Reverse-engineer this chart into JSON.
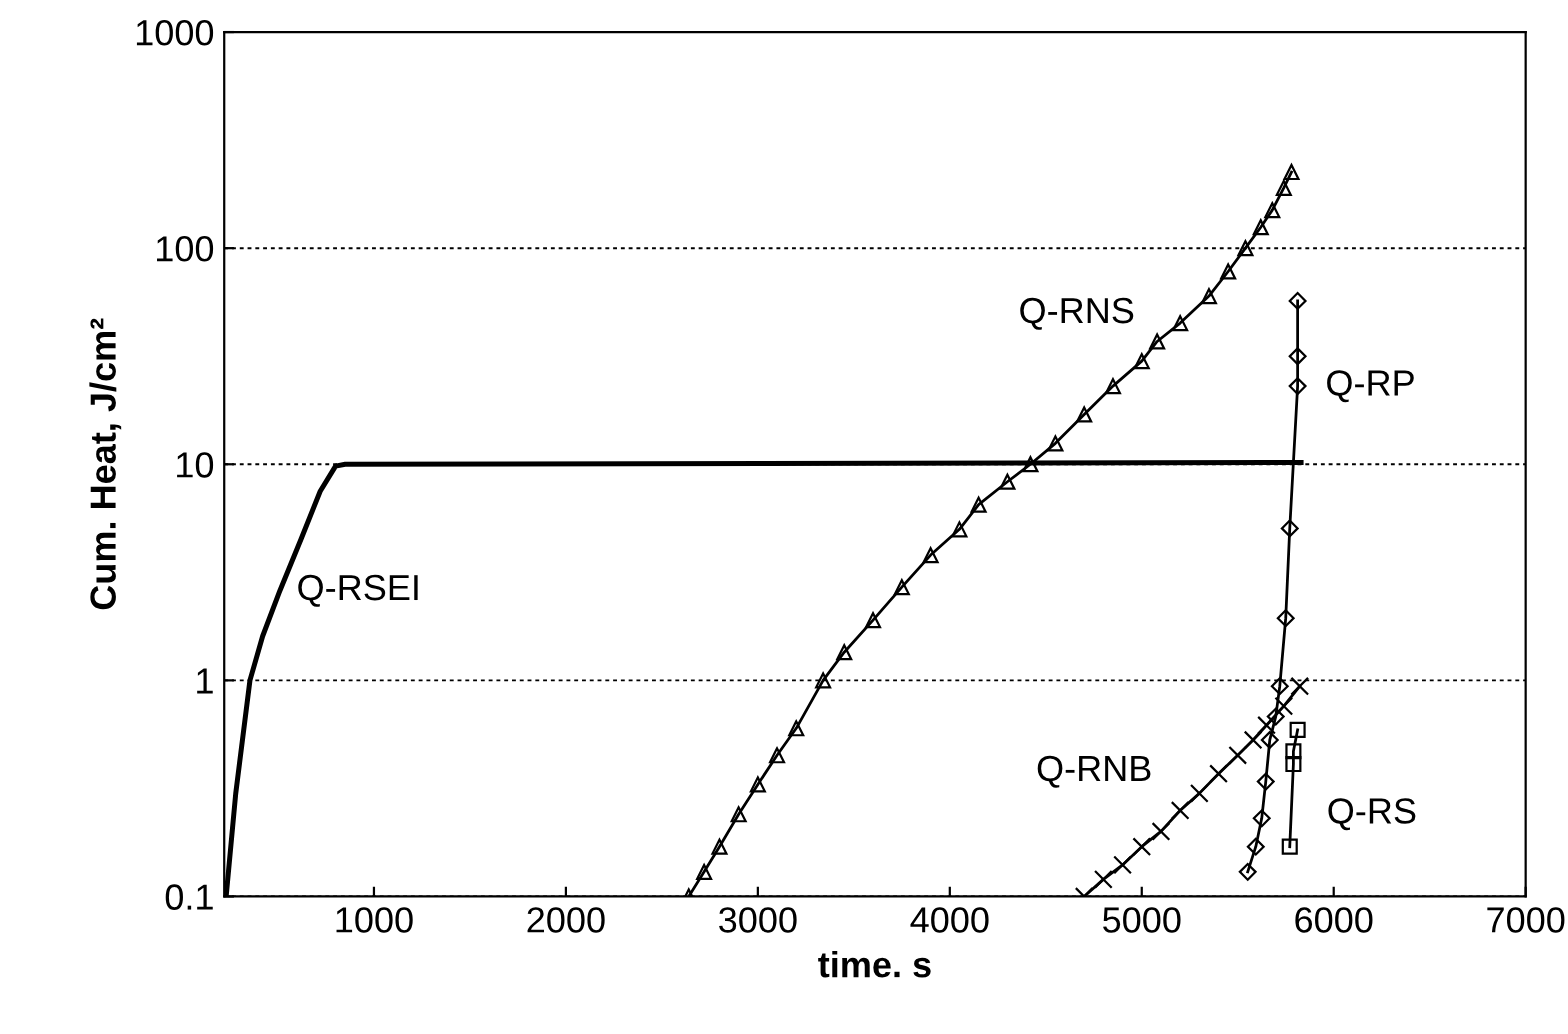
{
  "chart_data": {
    "type": "line",
    "xlabel": "time. s",
    "ylabel": "Cum. Heat, J/cm²",
    "log": "y",
    "xlim": [
      220,
      7000
    ],
    "xticks": [
      1000,
      2000,
      3000,
      4000,
      5000,
      6000,
      7000
    ],
    "ylim": [
      0.1,
      1000
    ],
    "yticks": [
      0.1,
      1,
      10,
      100,
      1000
    ],
    "grid": "y",
    "legend": false,
    "series": [
      {
        "name": "Q-RSEI",
        "color": "#000000",
        "marker": "none",
        "x": [
          230,
          280,
          354,
          420,
          510,
          620,
          720,
          800,
          850,
          5830
        ],
        "values": [
          0.1,
          0.3,
          1,
          1.6,
          2.6,
          4.5,
          7.5,
          9.8,
          10,
          10.2
        ]
      },
      {
        "name": "Q-RNS",
        "color": "#000000",
        "marker": "triangle",
        "x": [
          2640,
          2720,
          2800,
          2900,
          3000,
          3100,
          3200,
          3340,
          3450,
          3600,
          3750,
          3900,
          4050,
          4150,
          4300,
          4420,
          4550,
          4700,
          4850,
          5000,
          5080,
          5200,
          5350,
          5450,
          5540,
          5620,
          5680,
          5740,
          5780
        ],
        "values": [
          0.1,
          0.13,
          0.17,
          0.24,
          0.33,
          0.45,
          0.6,
          1,
          1.35,
          1.9,
          2.7,
          3.8,
          5.0,
          6.5,
          8.3,
          10,
          12.5,
          17,
          23,
          30,
          37,
          45,
          60,
          78,
          100,
          125,
          150,
          190,
          225
        ]
      },
      {
        "name": "Q-RP",
        "color": "#000000",
        "marker": "diamond",
        "x": [
          5552,
          5594,
          5625,
          5646,
          5667,
          5698,
          5719,
          5750,
          5771,
          5812,
          5812,
          5812
        ],
        "values": [
          0.13,
          0.17,
          0.23,
          0.34,
          0.53,
          0.68,
          0.94,
          1.94,
          5.05,
          23,
          31.6,
          57
        ]
      },
      {
        "name": "Q-RNB",
        "color": "#000000",
        "marker": "cross",
        "x": [
          4700,
          4800,
          4900,
          5000,
          5100,
          5200,
          5300,
          5400,
          5500,
          5580,
          5650,
          5740,
          5823
        ],
        "values": [
          0.1,
          0.12,
          0.14,
          0.17,
          0.2,
          0.25,
          0.3,
          0.37,
          0.45,
          0.53,
          0.62,
          0.76,
          0.94
        ]
      },
      {
        "name": "Q-RS",
        "color": "#000000",
        "marker": "square",
        "x": [
          5771,
          5790,
          5790,
          5812
        ],
        "values": [
          0.17,
          0.41,
          0.47,
          0.59
        ]
      }
    ]
  }
}
